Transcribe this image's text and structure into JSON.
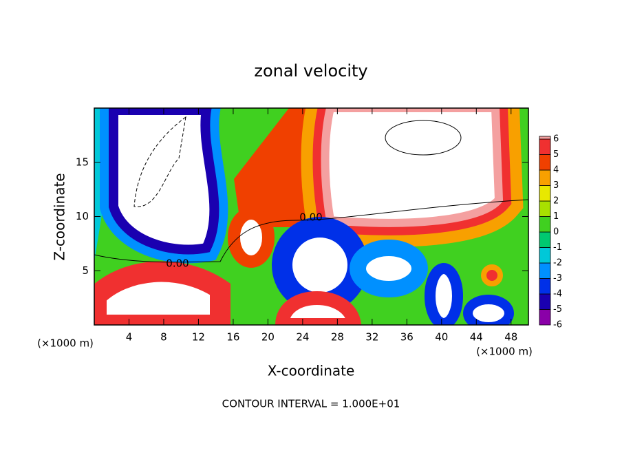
{
  "chart_data": {
    "type": "contour",
    "title": "zonal velocity",
    "x_label": "X-coordinate",
    "y_label": "Z-coordinate",
    "x_unit": "(×1000 m)",
    "footer": "CONTOUR INTERVAL = 1.000E+01",
    "contour_label": "0.00",
    "xlim": [
      0,
      50
    ],
    "xticks": [
      4,
      8,
      12,
      16,
      20,
      24,
      28,
      32,
      36,
      40,
      44,
      48
    ],
    "ylim": [
      0,
      20
    ],
    "yticks": [
      5,
      10,
      15
    ],
    "colorbar": {
      "levels": [
        -6,
        -5,
        -4,
        -3,
        -2,
        -1,
        0,
        1,
        2,
        3,
        4,
        5,
        6
      ],
      "colors": [
        "#8a00a8",
        "#1a00b0",
        "#0030e8",
        "#0090ff",
        "#00c8d8",
        "#00c870",
        "#40d020",
        "#a8e000",
        "#e8e800",
        "#f8a000",
        "#f04000",
        "#f03030",
        "#f4a0a0"
      ]
    }
  }
}
